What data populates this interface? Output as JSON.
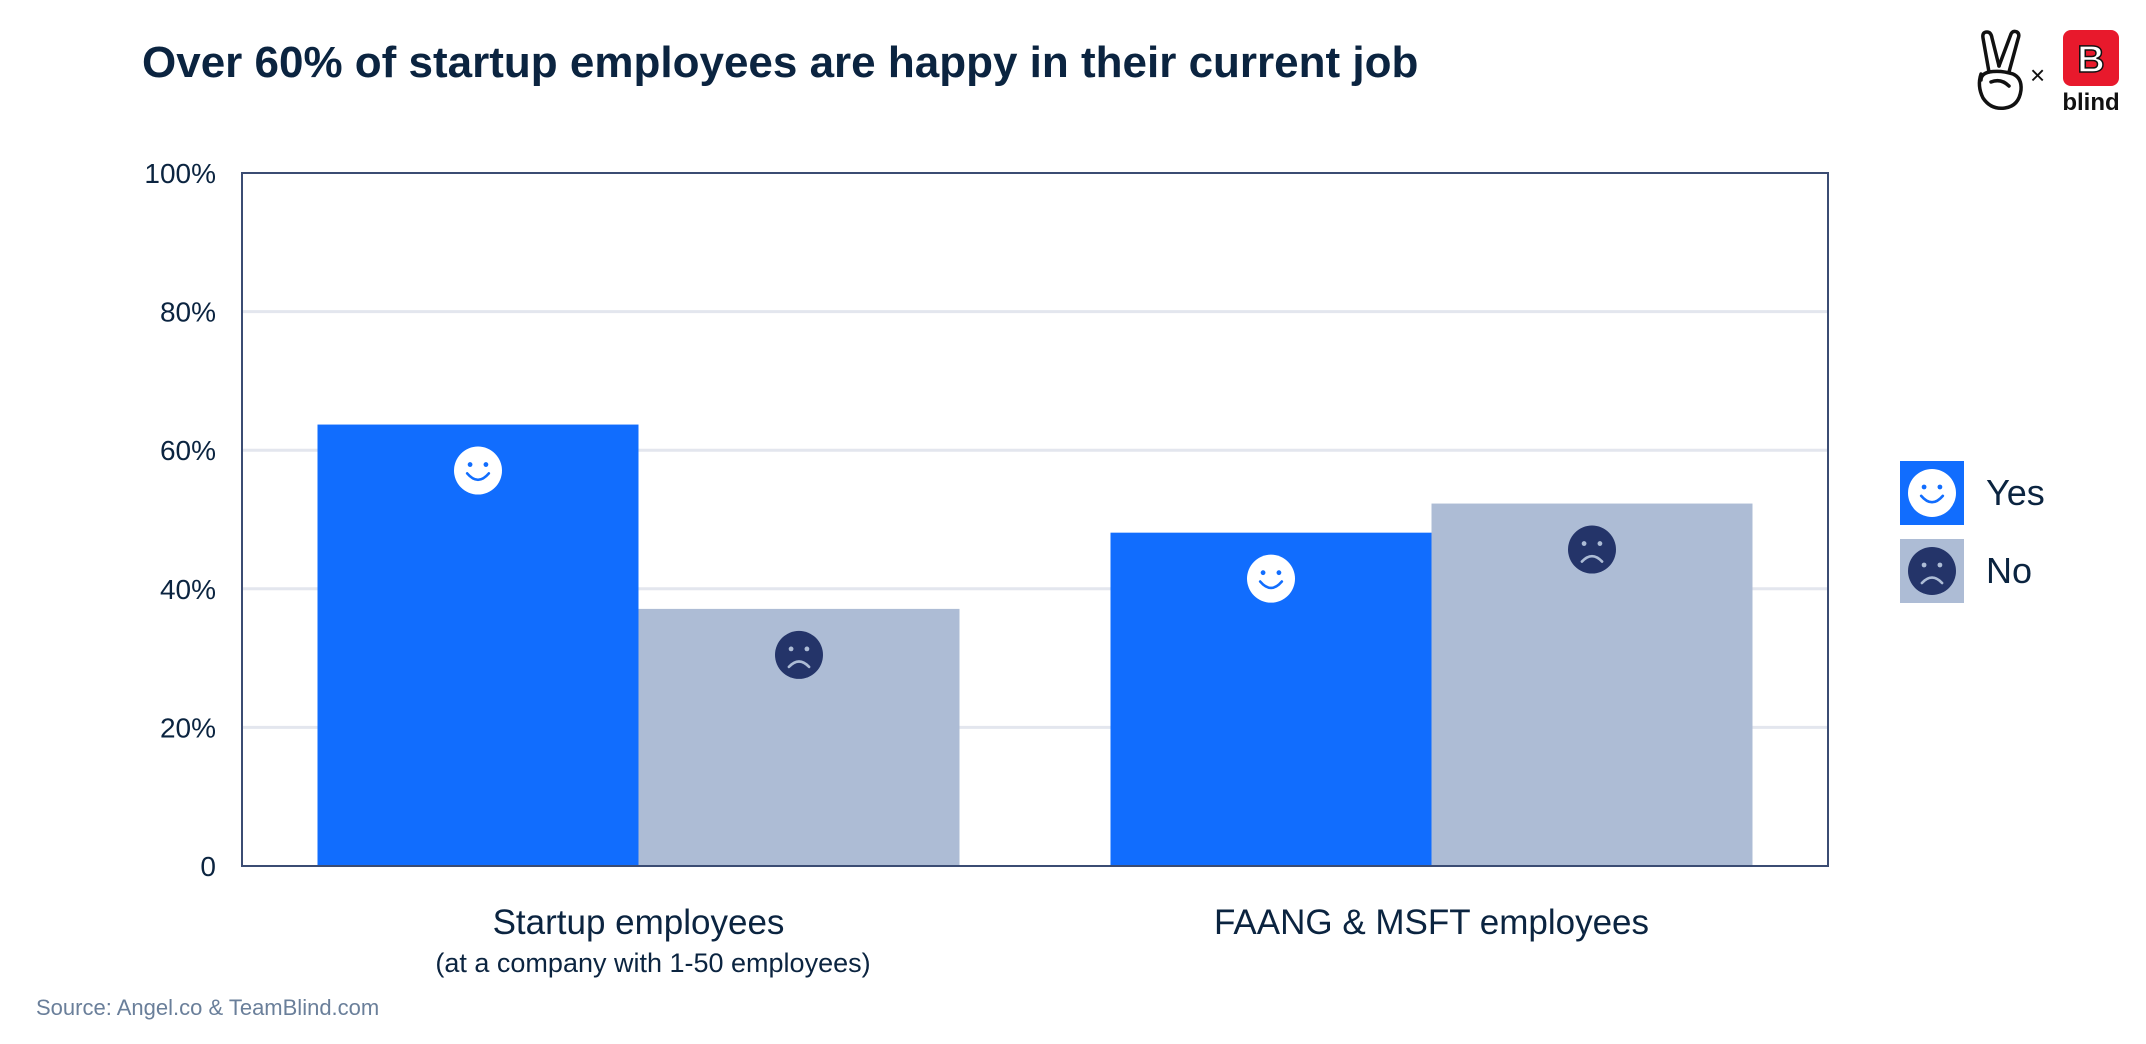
{
  "title": "Over 60% of startup employees are happy in their current job",
  "source": "Source: Angel.co & TeamBlind.com",
  "logo": {
    "separator": "×",
    "brand": "blind"
  },
  "colors": {
    "yes": "#116dfe",
    "no": "#adbcd5",
    "face_dark": "#243469",
    "grid": "#e3e6ee",
    "axis": "#3b4c73",
    "text": "#0b2440"
  },
  "legend": [
    {
      "label": "Yes",
      "color": "#116dfe",
      "icon": "happy-face-icon"
    },
    {
      "label": "No",
      "color": "#adbcd5",
      "icon": "sad-face-icon"
    }
  ],
  "chart_data": {
    "type": "bar",
    "title": "Over 60% of startup employees are happy in their current job",
    "categories": [
      "Startup employees",
      "FAANG & MSFT employees"
    ],
    "category_sublabels": [
      "(at a company with 1-50 employees)",
      ""
    ],
    "series": [
      {
        "name": "Yes",
        "values": [
          63.7,
          48.1
        ],
        "color": "#116dfe",
        "icon": "happy-face-icon"
      },
      {
        "name": "No",
        "values": [
          37.1,
          52.3
        ],
        "color": "#adbcd5",
        "icon": "sad-face-icon"
      }
    ],
    "yticks": [
      "0",
      "20%",
      "40%",
      "60%",
      "80%",
      "100%"
    ],
    "ylim": [
      0,
      100
    ],
    "grid": true,
    "legend_position": "right"
  }
}
